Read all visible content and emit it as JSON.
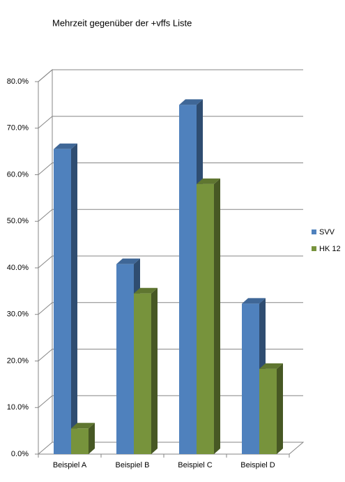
{
  "chart_data": {
    "type": "bar3d",
    "title": "Mehrzeit gegenüber der +vffs Liste",
    "categories": [
      "Beispiel A",
      "Beispiel B",
      "Beispiel C",
      "Beispiel D"
    ],
    "series": [
      {
        "name": "SVV",
        "color": "#4f81bd",
        "values": [
          65.5,
          40.8,
          75,
          32.3
        ]
      },
      {
        "name": "HK 12",
        "color": "#77933c",
        "values": [
          5.5,
          34.5,
          58,
          18.3
        ]
      }
    ],
    "ylim": [
      0,
      80
    ],
    "yticks": [
      {
        "value": 0,
        "label": "0.0%"
      },
      {
        "value": 10,
        "label": "10.0%"
      },
      {
        "value": 20,
        "label": "20.0%"
      },
      {
        "value": 30,
        "label": "30.0%"
      },
      {
        "value": 40,
        "label": "40.0%"
      },
      {
        "value": 50,
        "label": "50.0%"
      },
      {
        "value": 60,
        "label": "60.0%"
      },
      {
        "value": 70,
        "label": "70.0%"
      },
      {
        "value": 80,
        "label": "80.0%"
      }
    ],
    "grid": true,
    "legend": "right"
  }
}
